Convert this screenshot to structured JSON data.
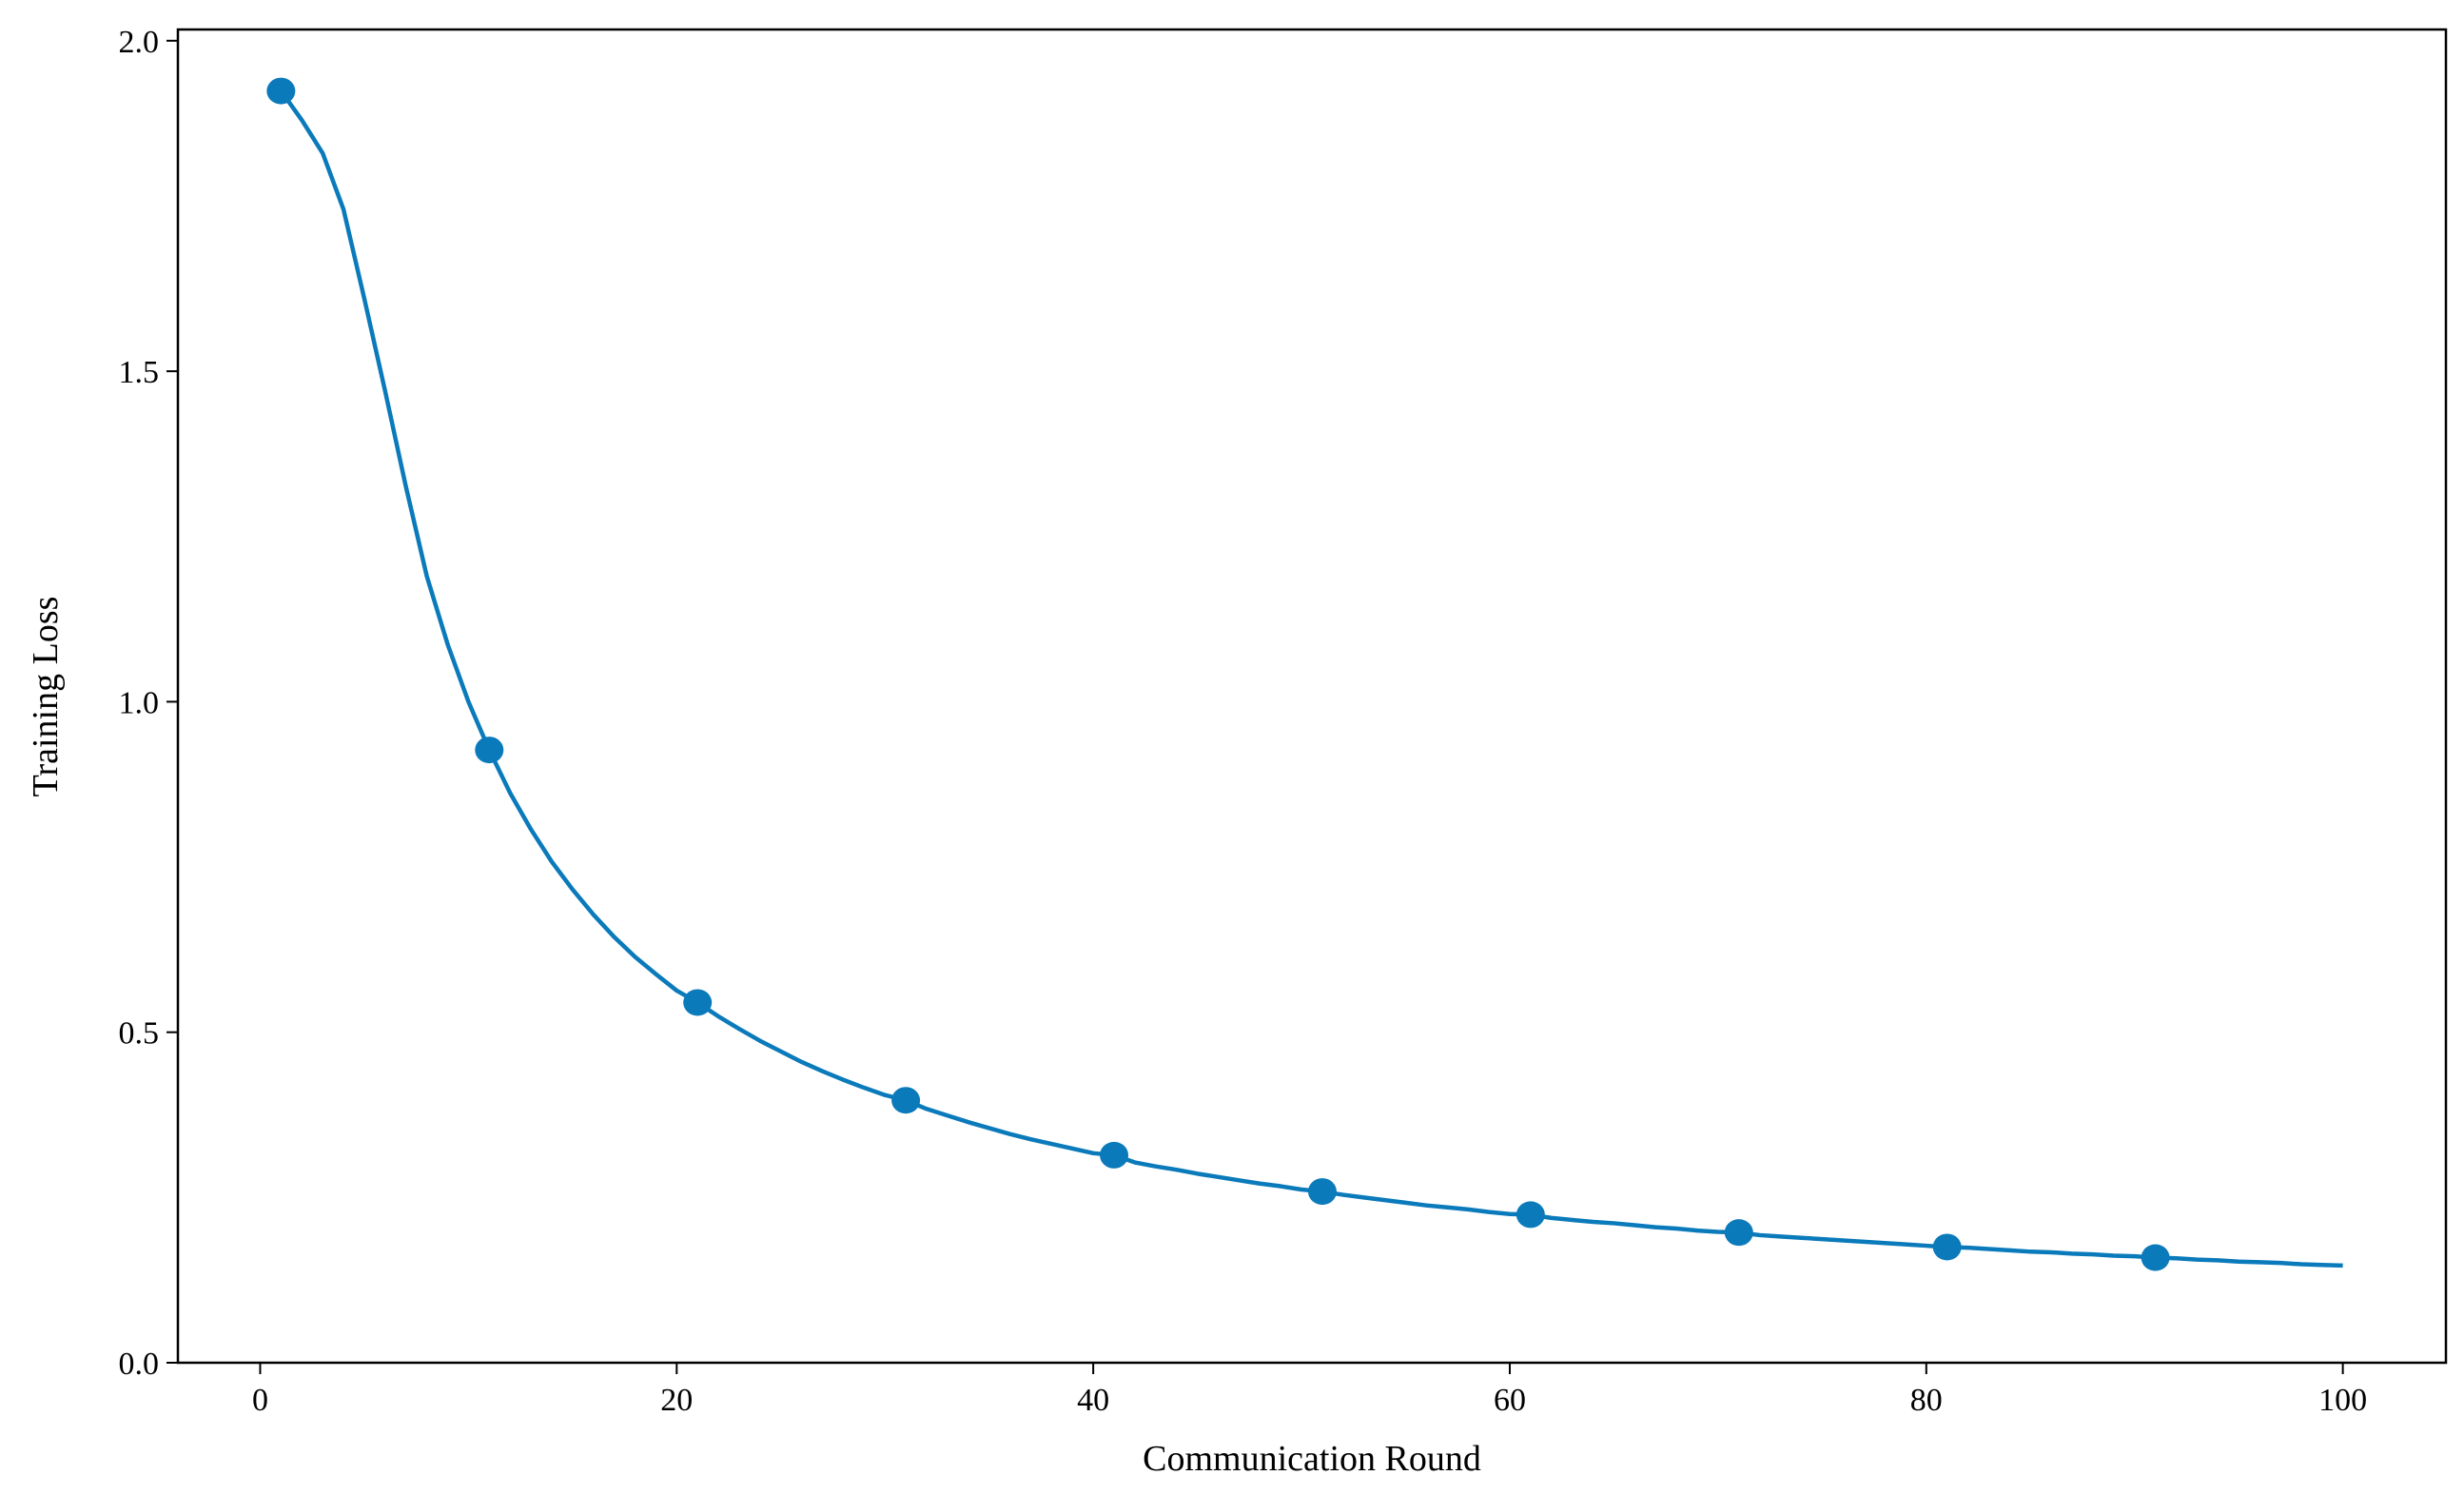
{
  "chart_data": {
    "type": "line",
    "xlabel": "Communication Round",
    "ylabel": "Training Loss",
    "x": [
      1,
      2,
      3,
      4,
      5,
      6,
      7,
      8,
      9,
      10,
      11,
      12,
      13,
      14,
      15,
      16,
      17,
      18,
      19,
      20,
      21,
      22,
      23,
      24,
      25,
      26,
      27,
      28,
      29,
      30,
      31,
      32,
      33,
      34,
      35,
      36,
      37,
      38,
      39,
      40,
      41,
      42,
      43,
      44,
      45,
      46,
      47,
      48,
      49,
      50,
      51,
      52,
      53,
      54,
      55,
      56,
      57,
      58,
      59,
      60,
      61,
      62,
      63,
      64,
      65,
      66,
      67,
      68,
      69,
      70,
      71,
      72,
      73,
      74,
      75,
      76,
      77,
      78,
      79,
      80,
      81,
      82,
      83,
      84,
      85,
      86,
      87,
      88,
      89,
      90,
      91,
      92,
      93,
      94,
      95,
      96,
      97,
      98,
      99,
      100
    ],
    "series": [
      {
        "color": "#0a7abb",
        "markevery": 10,
        "values": [
          1.924,
          1.88,
          1.83,
          1.745,
          1.61,
          1.47,
          1.325,
          1.19,
          1.087,
          1.0,
          0.927,
          0.862,
          0.807,
          0.758,
          0.716,
          0.678,
          0.644,
          0.614,
          0.588,
          0.563,
          0.545,
          0.524,
          0.505,
          0.487,
          0.471,
          0.455,
          0.441,
          0.428,
          0.416,
          0.405,
          0.397,
          0.384,
          0.374,
          0.364,
          0.355,
          0.346,
          0.338,
          0.331,
          0.324,
          0.317,
          0.314,
          0.303,
          0.297,
          0.292,
          0.286,
          0.281,
          0.276,
          0.271,
          0.267,
          0.262,
          0.259,
          0.254,
          0.25,
          0.246,
          0.242,
          0.238,
          0.235,
          0.232,
          0.228,
          0.225,
          0.224,
          0.219,
          0.216,
          0.213,
          0.211,
          0.208,
          0.205,
          0.203,
          0.2,
          0.198,
          0.197,
          0.193,
          0.191,
          0.189,
          0.187,
          0.185,
          0.183,
          0.181,
          0.179,
          0.177,
          0.175,
          0.174,
          0.172,
          0.17,
          0.168,
          0.167,
          0.165,
          0.164,
          0.162,
          0.161,
          0.159,
          0.158,
          0.156,
          0.155,
          0.153,
          0.152,
          0.151,
          0.149,
          0.148,
          0.147
        ]
      }
    ],
    "xlim": [
      -3.95,
      104.95
    ],
    "ylim": [
      0,
      2.017
    ],
    "xticks": [
      0,
      20,
      40,
      60,
      80,
      100
    ],
    "yticks": [
      {
        "value": 0,
        "label": "0.0"
      },
      0.5,
      {
        "value": 1,
        "label": "1.0"
      },
      1.5,
      {
        "value": 2,
        "label": "2.0"
      }
    ]
  }
}
